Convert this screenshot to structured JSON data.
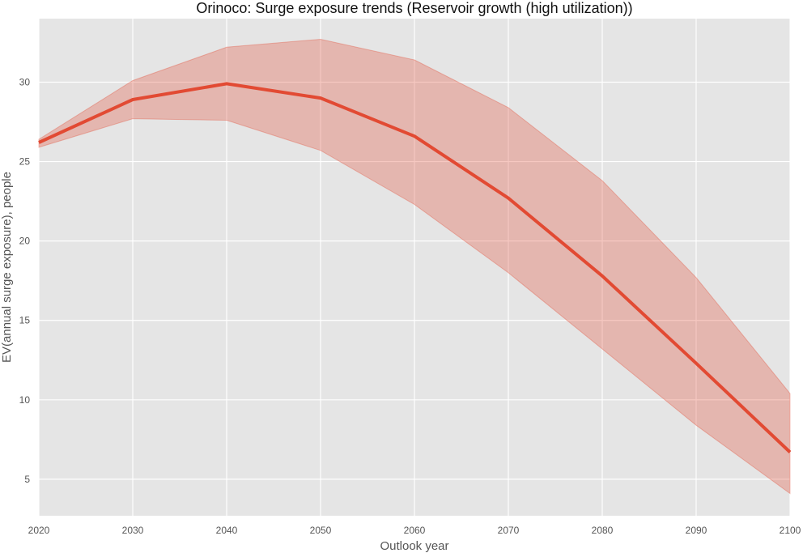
{
  "chart_data": {
    "type": "line",
    "title": "Orinoco: Surge exposure trends (Reservoir growth (high utilization))",
    "xlabel": "Outlook year",
    "ylabel": "EV(annual surge exposure), people",
    "x": [
      2020,
      2030,
      2040,
      2050,
      2060,
      2070,
      2080,
      2090,
      2100
    ],
    "xlim": [
      2020,
      2100
    ],
    "ylim": [
      2.7,
      34
    ],
    "xticks": [
      2020,
      2030,
      2040,
      2050,
      2060,
      2070,
      2080,
      2090,
      2100
    ],
    "yticks": [
      5,
      10,
      15,
      20,
      25,
      30
    ],
    "grid": true,
    "series": [
      {
        "name": "",
        "values": [
          26.2,
          28.9,
          29.9,
          29.0,
          26.6,
          22.7,
          17.8,
          12.3,
          6.7
        ],
        "lower": [
          25.9,
          27.7,
          27.6,
          25.7,
          22.3,
          18.0,
          13.2,
          8.4,
          4.1
        ],
        "upper": [
          26.4,
          30.1,
          32.2,
          32.7,
          31.4,
          28.4,
          23.8,
          17.7,
          10.4
        ]
      }
    ],
    "colors": {
      "line": "#e24a33",
      "band": "#e24a33",
      "plot_background": "#e5e5e5",
      "grid": "#ffffff"
    }
  }
}
